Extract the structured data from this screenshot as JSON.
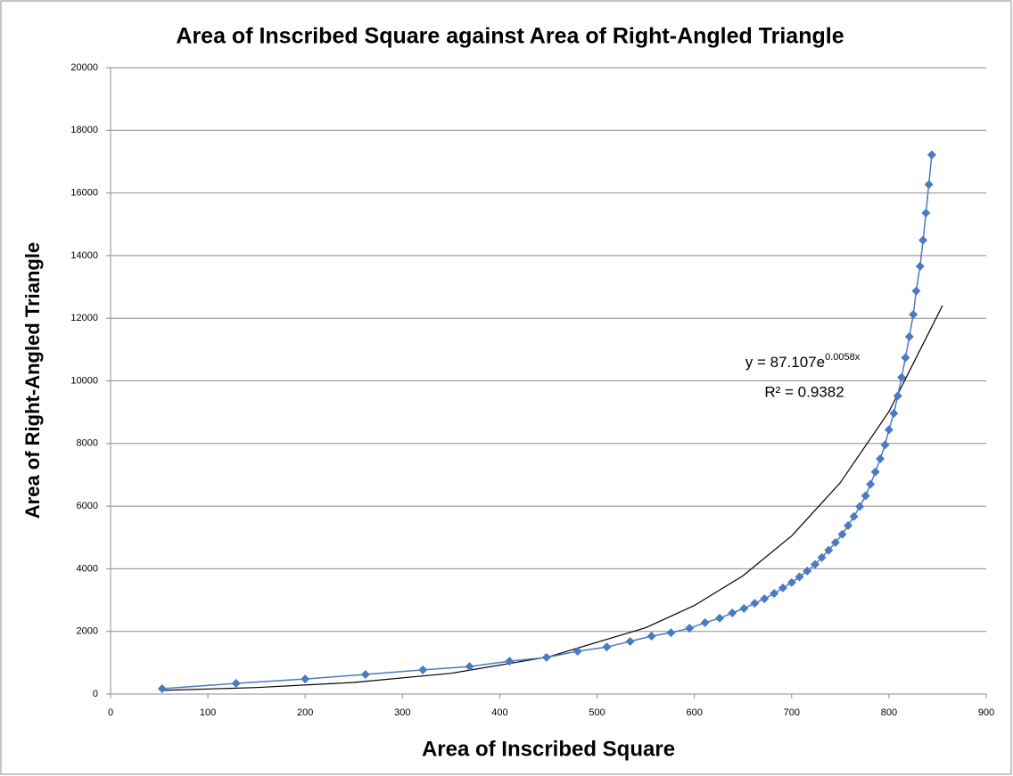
{
  "chart_data": {
    "type": "scatter",
    "title": "Area of Inscribed Square against Area of Right-Angled Triangle",
    "xlabel": "Area of Inscribed Square",
    "ylabel": "Area of Right-Angled Triangle",
    "xlim": [
      0,
      900
    ],
    "ylim": [
      0,
      20000
    ],
    "xticks": [
      0,
      100,
      200,
      300,
      400,
      500,
      600,
      700,
      800,
      900
    ],
    "yticks": [
      0,
      2000,
      4000,
      6000,
      8000,
      10000,
      12000,
      14000,
      16000,
      18000,
      20000
    ],
    "grid": true,
    "series": [
      {
        "color": "#4a7ac0",
        "x": [
          53,
          129,
          200,
          262,
          321,
          369,
          410,
          448,
          480,
          510,
          534,
          556,
          576,
          595,
          611,
          626,
          639,
          651,
          662,
          672,
          682,
          691,
          700,
          708,
          716,
          724,
          731,
          738,
          745,
          752,
          758,
          764,
          770,
          776,
          781,
          786,
          791,
          796,
          800,
          805,
          809,
          813,
          817,
          821,
          825,
          828,
          832,
          835,
          838,
          841,
          844
        ],
        "values": [
          170,
          340,
          480,
          625,
          770,
          880,
          1050,
          1170,
          1365,
          1500,
          1680,
          1850,
          1960,
          2100,
          2280,
          2420,
          2590,
          2730,
          2900,
          3040,
          3210,
          3390,
          3560,
          3740,
          3930,
          4140,
          4360,
          4590,
          4840,
          5100,
          5380,
          5670,
          5990,
          6330,
          6700,
          7090,
          7510,
          7960,
          8440,
          8960,
          9520,
          10110,
          10740,
          11410,
          12120,
          12870,
          13660,
          14490,
          15360,
          16270,
          17220
        ]
      }
    ],
    "trendline": {
      "color": "#000000",
      "x": [
        53,
        150,
        250,
        350,
        450,
        550,
        600,
        650,
        700,
        750,
        800,
        855
      ],
      "values": [
        118,
        208,
        371,
        663,
        1185,
        2116,
        2828,
        3779,
        5050,
        6749,
        9019,
        12404
      ]
    },
    "annotations": [
      "y = 87.107e",
      "0.0058x",
      "R² = 0.9382"
    ]
  }
}
